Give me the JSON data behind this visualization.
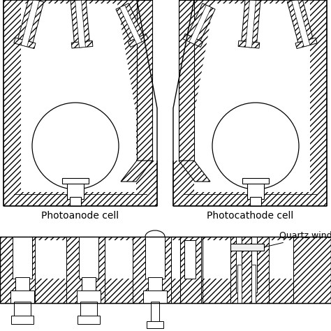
{
  "label_anode": "Photoanode cell",
  "label_cathode": "Photocathode cell",
  "label_quartz": "Quartz window",
  "bg_color": "#ffffff",
  "figsize": [
    4.74,
    4.74
  ],
  "dpi": 100
}
